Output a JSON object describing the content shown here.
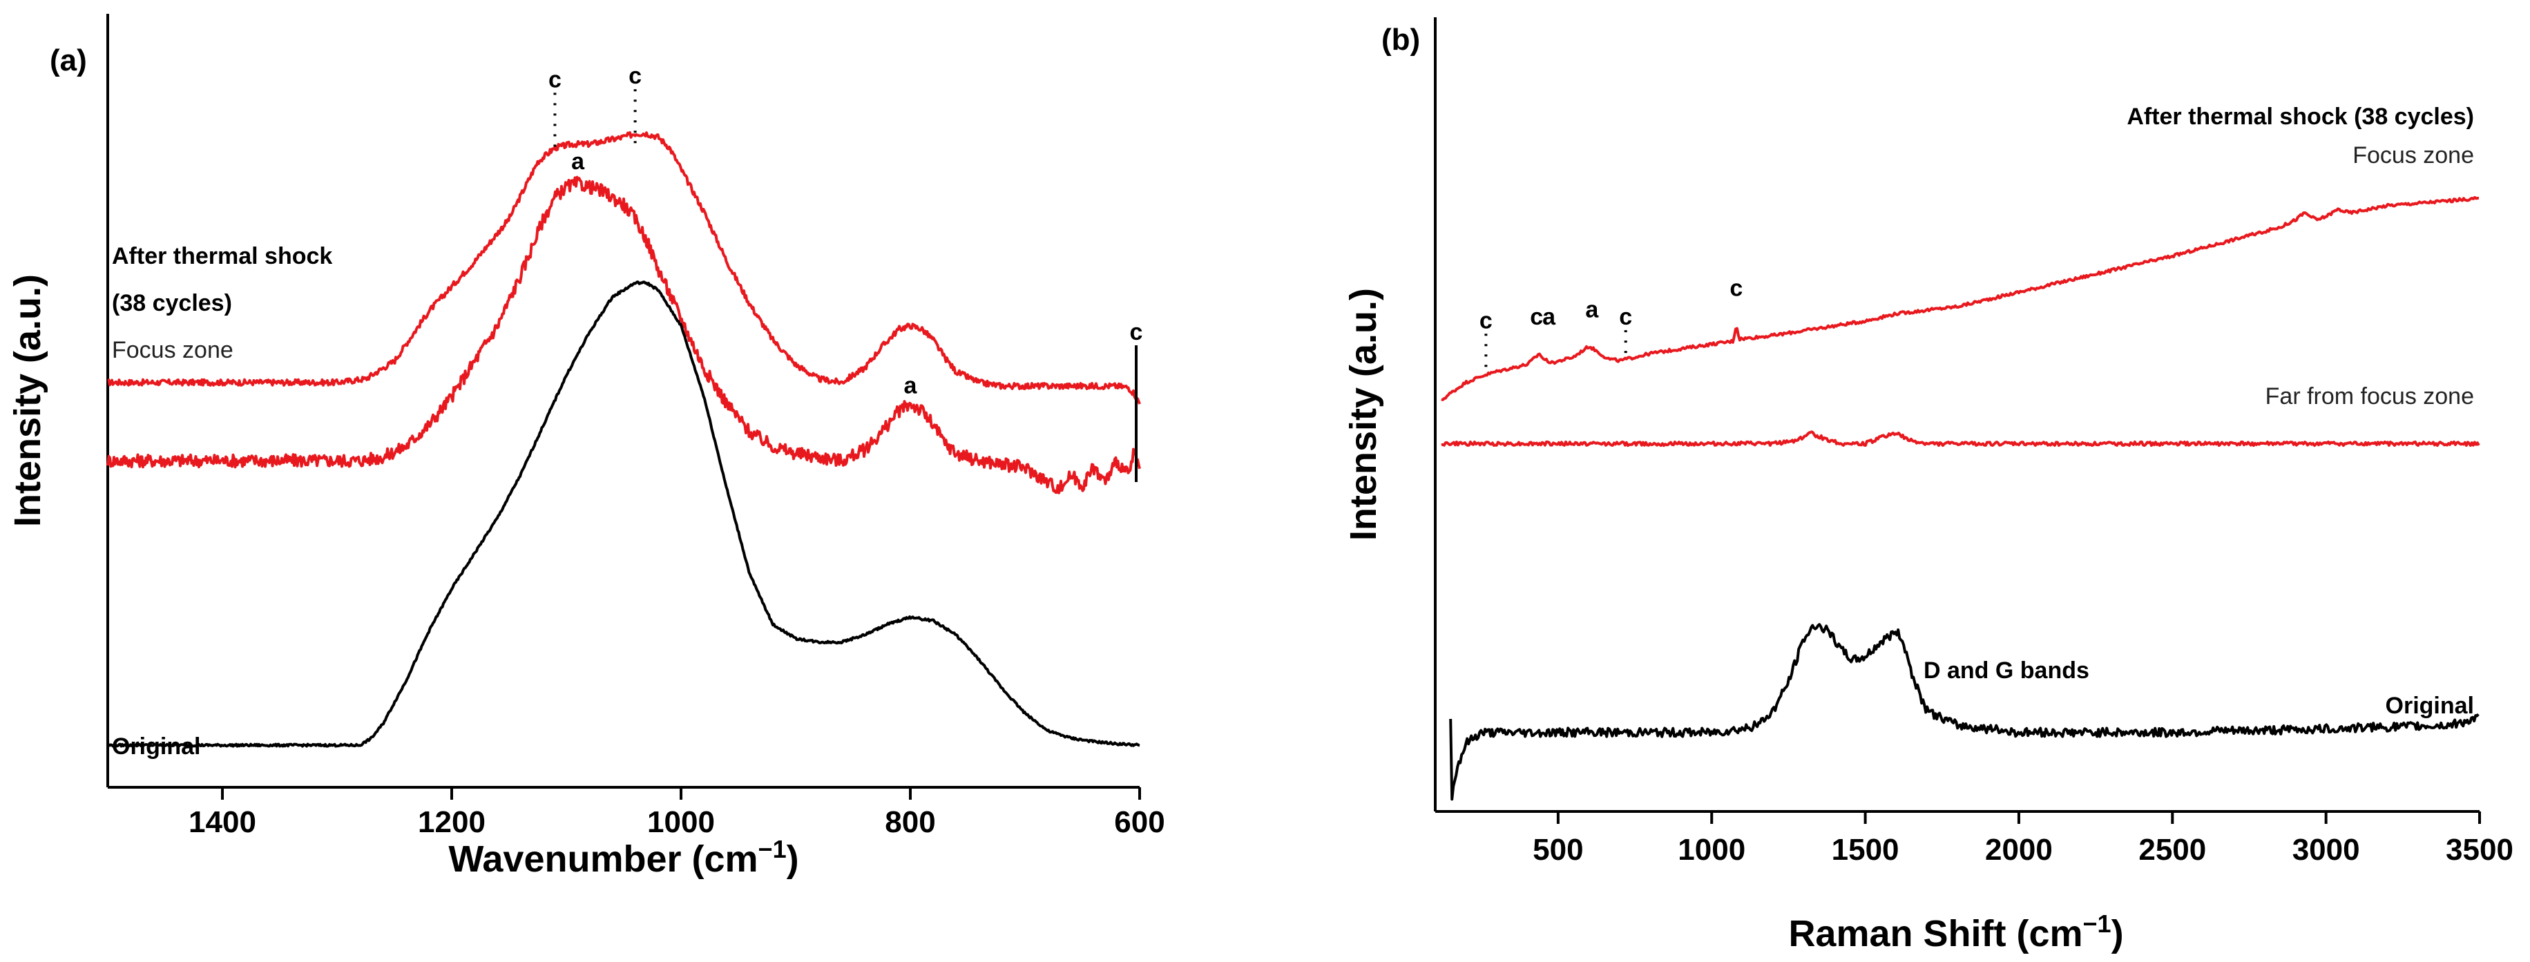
{
  "chart_data": [
    {
      "panel": "(a)",
      "type": "line",
      "xlabel": "Wavenumber (cm",
      "xlabel_sup": "−1",
      "xlabel_end": ")",
      "ylabel": "Intensity (a.u.)",
      "xlim": [
        1500,
        600
      ],
      "ylim": [
        0,
        1
      ],
      "xticks": [
        1400,
        1200,
        1000,
        800,
        600
      ],
      "series": [
        {
          "name": "After thermal shock (38 cycles) Focus zone",
          "color": "#e8191e",
          "noise": 0.004,
          "x": [
            1500,
            1400,
            1300,
            1275,
            1250,
            1220,
            1180,
            1150,
            1125,
            1110,
            1095,
            1080,
            1065,
            1050,
            1040,
            1030,
            1020,
            1010,
            1000,
            980,
            960,
            940,
            920,
            900,
            880,
            860,
            840,
            825,
            810,
            800,
            790,
            780,
            770,
            760,
            740,
            720,
            700,
            680,
            660,
            640,
            620,
            610,
            605,
            600
          ],
          "y": [
            0.54,
            0.54,
            0.54,
            0.545,
            0.57,
            0.64,
            0.71,
            0.77,
            0.85,
            0.87,
            0.875,
            0.875,
            0.88,
            0.885,
            0.89,
            0.89,
            0.885,
            0.87,
            0.84,
            0.78,
            0.71,
            0.65,
            0.6,
            0.565,
            0.545,
            0.54,
            0.56,
            0.59,
            0.615,
            0.62,
            0.615,
            0.6,
            0.575,
            0.555,
            0.54,
            0.535,
            0.535,
            0.535,
            0.535,
            0.535,
            0.535,
            0.533,
            0.525,
            0.51
          ]
        },
        {
          "name": "After thermal shock (38 cycles)",
          "color": "#e8191e",
          "noise": 0.009,
          "x": [
            1500,
            1400,
            1300,
            1280,
            1260,
            1240,
            1220,
            1200,
            1180,
            1160,
            1140,
            1120,
            1110,
            1100,
            1090,
            1080,
            1070,
            1060,
            1050,
            1040,
            1030,
            1020,
            1000,
            980,
            960,
            940,
            920,
            900,
            880,
            860,
            840,
            825,
            810,
            800,
            790,
            780,
            770,
            760,
            740,
            720,
            700,
            680,
            670,
            660,
            650,
            640,
            630,
            620,
            610,
            605,
            600
          ],
          "y": [
            0.43,
            0.43,
            0.43,
            0.43,
            0.435,
            0.45,
            0.48,
            0.52,
            0.57,
            0.62,
            0.69,
            0.77,
            0.8,
            0.815,
            0.82,
            0.815,
            0.81,
            0.8,
            0.79,
            0.77,
            0.74,
            0.7,
            0.63,
            0.56,
            0.51,
            0.47,
            0.45,
            0.44,
            0.435,
            0.43,
            0.445,
            0.47,
            0.5,
            0.51,
            0.5,
            0.48,
            0.455,
            0.44,
            0.43,
            0.425,
            0.42,
            0.4,
            0.39,
            0.41,
            0.395,
            0.42,
            0.4,
            0.43,
            0.41,
            0.44,
            0.42
          ]
        },
        {
          "name": "Original",
          "color": "#000000",
          "noise": 0.0015,
          "x": [
            1500,
            1400,
            1300,
            1280,
            1270,
            1260,
            1250,
            1240,
            1220,
            1200,
            1180,
            1160,
            1140,
            1120,
            1100,
            1080,
            1060,
            1040,
            1030,
            1020,
            1000,
            980,
            960,
            940,
            920,
            900,
            880,
            860,
            840,
            820,
            800,
            780,
            760,
            740,
            720,
            700,
            680,
            660,
            640,
            620,
            600
          ],
          "y": [
            0.03,
            0.03,
            0.03,
            0.03,
            0.04,
            0.06,
            0.09,
            0.12,
            0.19,
            0.25,
            0.3,
            0.35,
            0.41,
            0.48,
            0.55,
            0.61,
            0.66,
            0.68,
            0.68,
            0.67,
            0.62,
            0.52,
            0.39,
            0.27,
            0.2,
            0.18,
            0.175,
            0.175,
            0.185,
            0.2,
            0.21,
            0.205,
            0.185,
            0.15,
            0.11,
            0.075,
            0.05,
            0.04,
            0.035,
            0.032,
            0.03
          ]
        }
      ],
      "peak_labels": [
        {
          "text": "c",
          "x": 1110,
          "y": 0.955,
          "dotted_to": 0.86
        },
        {
          "text": "c",
          "x": 1040,
          "y": 0.96,
          "dotted_to": 0.87
        },
        {
          "text": "a",
          "x": 1090,
          "y": 0.84
        },
        {
          "text": "a",
          "x": 800,
          "y": 0.525
        },
        {
          "text": "c",
          "x": 603,
          "y": 0.6,
          "line_to": 0.4
        }
      ],
      "annotations": [
        {
          "text": "After thermal shock",
          "bold": true
        },
        {
          "text": "(38 cycles)",
          "bold": true
        },
        {
          "text": "Focus zone",
          "bold": false
        },
        {
          "text": "Original",
          "bold": true
        }
      ]
    },
    {
      "panel": "(b)",
      "type": "line",
      "xlabel": "Raman Shift (cm",
      "xlabel_sup": "−1",
      "xlabel_end": ")",
      "ylabel": "Intensity (a.u.)",
      "xlim": [
        100,
        3500
      ],
      "ylim": [
        0,
        1
      ],
      "xticks": [
        500,
        1000,
        1500,
        2000,
        2500,
        3000,
        3500
      ],
      "series": [
        {
          "name": "After thermal shock (38 cycles) Focus zone",
          "color": "#e8191e",
          "noise": 0.002,
          "x": [
            120,
            150,
            200,
            260,
            300,
            400,
            440,
            450,
            480,
            550,
            600,
            620,
            660,
            700,
            800,
            1000,
            1070,
            1080,
            1090,
            1200,
            1500,
            1600,
            1800,
            2000,
            2500,
            2850,
            2900,
            2930,
            2970,
            3000,
            3040,
            3060,
            3080,
            3200,
            3500
          ],
          "y": [
            0.56,
            0.57,
            0.585,
            0.595,
            0.6,
            0.61,
            0.625,
            0.618,
            0.612,
            0.62,
            0.635,
            0.63,
            0.618,
            0.615,
            0.625,
            0.638,
            0.642,
            0.665,
            0.645,
            0.65,
            0.67,
            0.68,
            0.69,
            0.71,
            0.76,
            0.8,
            0.81,
            0.82,
            0.81,
            0.815,
            0.825,
            0.822,
            0.82,
            0.83,
            0.84
          ]
        },
        {
          "name": "Far from focus zone",
          "color": "#e8191e",
          "noise": 0.0025,
          "x": [
            120,
            500,
            1000,
            1200,
            1280,
            1320,
            1360,
            1420,
            1500,
            1560,
            1600,
            1640,
            1700,
            2000,
            2500,
            3000,
            3500
          ],
          "y": [
            0.5,
            0.5,
            0.5,
            0.5,
            0.505,
            0.515,
            0.508,
            0.5,
            0.5,
            0.51,
            0.515,
            0.505,
            0.5,
            0.5,
            0.5,
            0.5,
            0.5
          ]
        },
        {
          "name": "Original",
          "color": "#000000",
          "noise": 0.006,
          "x": [
            150,
            170,
            200,
            250,
            500,
            800,
            1000,
            1100,
            1150,
            1200,
            1250,
            1300,
            1340,
            1380,
            1420,
            1460,
            1500,
            1550,
            1600,
            1620,
            1660,
            1700,
            1800,
            2000,
            2500,
            3000,
            3400,
            3500
          ],
          "y": [
            0.0,
            0.05,
            0.085,
            0.1,
            0.1,
            0.1,
            0.1,
            0.105,
            0.11,
            0.13,
            0.17,
            0.23,
            0.25,
            0.24,
            0.215,
            0.2,
            0.205,
            0.225,
            0.24,
            0.23,
            0.17,
            0.13,
            0.11,
            0.1,
            0.1,
            0.105,
            0.11,
            0.12
          ]
        }
      ],
      "peak_labels": [
        {
          "text": "c",
          "x": 265,
          "y": 0.66,
          "dotted_to": 0.6
        },
        {
          "text": "c",
          "x": 430,
          "y": 0.665
        },
        {
          "text": "a",
          "x": 470,
          "y": 0.665
        },
        {
          "text": "a",
          "x": 610,
          "y": 0.675
        },
        {
          "text": "c",
          "x": 720,
          "y": 0.665,
          "dotted_to": 0.625
        },
        {
          "text": "c",
          "x": 1080,
          "y": 0.705
        }
      ],
      "annotations": [
        {
          "text": "After thermal shock (38 cycles)",
          "bold": true
        },
        {
          "text": "Focus zone",
          "bold": false
        },
        {
          "text": "Far from focus zone",
          "bold": false
        },
        {
          "text": "D and G bands",
          "bold": true
        },
        {
          "text": "Original",
          "bold": true
        }
      ]
    }
  ]
}
